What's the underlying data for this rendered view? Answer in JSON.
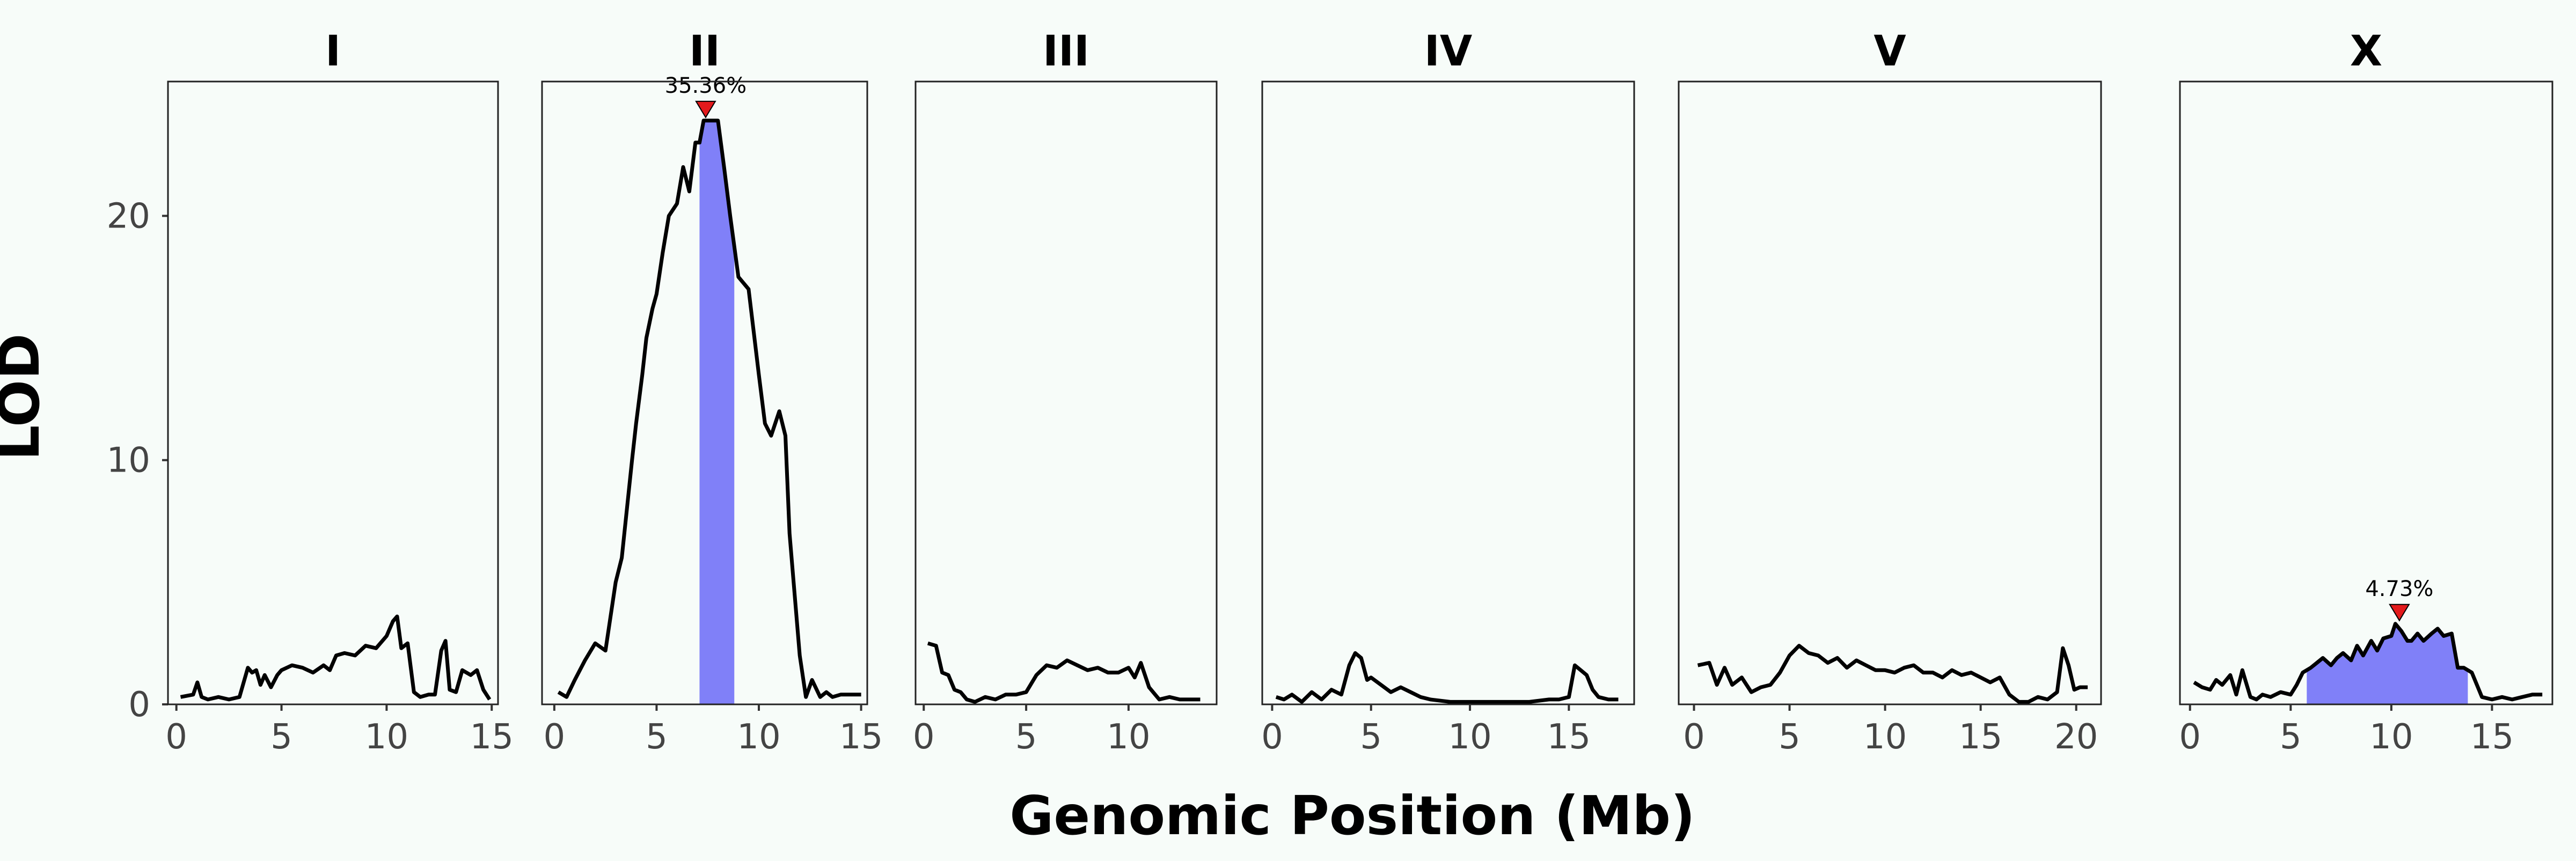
{
  "chart_data": {
    "type": "line",
    "xlabel": "Genomic Position (Mb)",
    "ylabel": "LOD",
    "ylim": [
      0,
      25.5
    ],
    "yticks": [
      0,
      10,
      20
    ],
    "grid": false,
    "colors": {
      "line": "#000000",
      "interval": "#8080f8",
      "marker": "#e31a1c",
      "panel_bg": "#f7fcf9"
    },
    "panels": [
      {
        "name": "I",
        "xlim": [
          -0.4,
          15.3
        ],
        "xticks": [
          0,
          5,
          10,
          15
        ],
        "peak": null,
        "x": [
          0.2,
          0.8,
          1.0,
          1.2,
          1.5,
          2,
          2.5,
          3,
          3.4,
          3.6,
          3.8,
          4.0,
          4.2,
          4.5,
          4.8,
          5,
          5.5,
          6,
          6.5,
          7,
          7.3,
          7.6,
          8,
          8.5,
          9,
          9.5,
          10,
          10.3,
          10.5,
          10.7,
          11,
          11.3,
          11.6,
          12,
          12.3,
          12.6,
          12.8,
          13,
          13.3,
          13.6,
          14,
          14.3,
          14.6,
          14.9
        ],
        "y": [
          0.3,
          0.4,
          0.9,
          0.3,
          0.2,
          0.3,
          0.2,
          0.3,
          1.5,
          1.3,
          1.4,
          0.8,
          1.2,
          0.7,
          1.2,
          1.4,
          1.6,
          1.5,
          1.3,
          1.6,
          1.4,
          2.0,
          2.1,
          2.0,
          2.4,
          2.3,
          2.8,
          3.4,
          3.6,
          2.3,
          2.5,
          0.5,
          0.3,
          0.4,
          0.4,
          2.2,
          2.6,
          0.6,
          0.5,
          1.4,
          1.2,
          1.4,
          0.6,
          0.2
        ]
      },
      {
        "name": "II",
        "xlim": [
          -0.6,
          15.3
        ],
        "xticks": [
          0,
          5,
          10,
          15
        ],
        "peak": {
          "x": 7.4,
          "label": "35.36%",
          "ci": [
            7.1,
            8.8
          ]
        },
        "x": [
          0.2,
          0.6,
          1,
          1.5,
          2,
          2.5,
          3,
          3.3,
          3.8,
          4,
          4.3,
          4.5,
          4.8,
          5,
          5.3,
          5.6,
          6,
          6.3,
          6.6,
          6.9,
          7.1,
          7.3,
          7.5,
          7.8,
          8.0,
          8.3,
          8.6,
          9,
          9.5,
          10,
          10.3,
          10.6,
          11,
          11.3,
          11.5,
          11.8,
          12,
          12.3,
          12.6,
          13,
          13.3,
          13.6,
          14,
          14.5,
          15
        ],
        "y": [
          0.5,
          0.3,
          1.0,
          1.8,
          2.5,
          2.2,
          5.0,
          6.0,
          10.0,
          11.5,
          13.5,
          15.0,
          16.2,
          16.8,
          18.5,
          20.0,
          20.5,
          22.0,
          21.0,
          23.0,
          23.0,
          23.9,
          23.9,
          23.9,
          23.9,
          22.0,
          20.0,
          17.5,
          17.0,
          13.5,
          11.5,
          11.0,
          12.0,
          11.0,
          7.0,
          4.0,
          2.0,
          0.3,
          1.0,
          0.3,
          0.5,
          0.3,
          0.4,
          0.4,
          0.4
        ]
      },
      {
        "name": "III",
        "xlim": [
          -0.4,
          14.3
        ],
        "xticks": [
          0,
          5,
          10
        ],
        "peak": null,
        "x": [
          0.2,
          0.6,
          0.9,
          1.2,
          1.5,
          1.8,
          2.1,
          2.5,
          3,
          3.5,
          4,
          4.5,
          5,
          5.5,
          6,
          6.5,
          7,
          7.5,
          8,
          8.5,
          9,
          9.5,
          10,
          10.3,
          10.6,
          11,
          11.5,
          12,
          12.5,
          13,
          13.5
        ],
        "y": [
          2.5,
          2.4,
          1.3,
          1.2,
          0.6,
          0.5,
          0.2,
          0.1,
          0.3,
          0.2,
          0.4,
          0.4,
          0.5,
          1.2,
          1.6,
          1.5,
          1.8,
          1.6,
          1.4,
          1.5,
          1.3,
          1.3,
          1.5,
          1.1,
          1.7,
          0.7,
          0.2,
          0.3,
          0.2,
          0.2,
          0.2
        ]
      },
      {
        "name": "IV",
        "xlim": [
          -0.5,
          18.3
        ],
        "xticks": [
          0,
          5,
          10,
          15
        ],
        "peak": null,
        "x": [
          0.2,
          0.6,
          1,
          1.5,
          2,
          2.5,
          3,
          3.5,
          3.9,
          4.2,
          4.5,
          4.8,
          5,
          5.5,
          6,
          6.5,
          7,
          7.5,
          8,
          9,
          10,
          11,
          12,
          13,
          14,
          14.5,
          15,
          15.3,
          15.6,
          15.9,
          16.2,
          16.5,
          17,
          17.5
        ],
        "y": [
          0.3,
          0.2,
          0.4,
          0.1,
          0.5,
          0.2,
          0.6,
          0.4,
          1.6,
          2.1,
          1.9,
          1.0,
          1.1,
          0.8,
          0.5,
          0.7,
          0.5,
          0.3,
          0.2,
          0.1,
          0.1,
          0.1,
          0.1,
          0.1,
          0.2,
          0.2,
          0.3,
          1.6,
          1.4,
          1.2,
          0.6,
          0.3,
          0.2,
          0.2
        ]
      },
      {
        "name": "V",
        "xlim": [
          -0.8,
          21.3
        ],
        "xticks": [
          0,
          5,
          10,
          15,
          20
        ],
        "peak": null,
        "x": [
          0.2,
          0.8,
          1.2,
          1.6,
          2,
          2.5,
          3,
          3.5,
          4,
          4.5,
          5,
          5.5,
          6,
          6.5,
          7,
          7.5,
          8,
          8.5,
          9,
          9.5,
          10,
          10.5,
          11,
          11.5,
          12,
          12.5,
          13,
          13.5,
          14,
          14.5,
          15,
          15.5,
          16,
          16.5,
          17,
          17.5,
          18,
          18.5,
          19,
          19.3,
          19.6,
          19.9,
          20.2,
          20.6
        ],
        "y": [
          1.6,
          1.7,
          0.8,
          1.5,
          0.8,
          1.1,
          0.5,
          0.7,
          0.8,
          1.3,
          2.0,
          2.4,
          2.1,
          2.0,
          1.7,
          1.9,
          1.5,
          1.8,
          1.6,
          1.4,
          1.4,
          1.3,
          1.5,
          1.6,
          1.3,
          1.3,
          1.1,
          1.4,
          1.2,
          1.3,
          1.1,
          0.9,
          1.1,
          0.4,
          0.1,
          0.1,
          0.3,
          0.2,
          0.5,
          2.3,
          1.6,
          0.6,
          0.7,
          0.7
        ]
      },
      {
        "name": "X",
        "xlim": [
          -0.5,
          18.0
        ],
        "xticks": [
          0,
          5,
          10,
          15
        ],
        "peak": {
          "x": 10.4,
          "label": "4.73%",
          "ci": [
            5.8,
            13.8
          ]
        },
        "x": [
          0.2,
          0.6,
          1,
          1.3,
          1.6,
          2,
          2.3,
          2.6,
          3,
          3.3,
          3.6,
          4,
          4.5,
          5,
          5.3,
          5.6,
          6,
          6.3,
          6.6,
          7,
          7.3,
          7.6,
          8,
          8.3,
          8.6,
          9,
          9.3,
          9.6,
          10,
          10.2,
          10.5,
          10.8,
          11,
          11.3,
          11.6,
          12,
          12.3,
          12.6,
          13,
          13.3,
          13.6,
          14,
          14.5,
          15,
          15.5,
          16,
          16.5,
          17,
          17.5
        ],
        "y": [
          0.9,
          0.7,
          0.6,
          1.0,
          0.8,
          1.2,
          0.4,
          1.4,
          0.3,
          0.2,
          0.4,
          0.3,
          0.5,
          0.4,
          0.8,
          1.3,
          1.5,
          1.7,
          1.9,
          1.6,
          1.9,
          2.1,
          1.8,
          2.4,
          2.0,
          2.6,
          2.2,
          2.7,
          2.8,
          3.3,
          3.0,
          2.6,
          2.6,
          2.9,
          2.6,
          2.9,
          3.1,
          2.8,
          2.9,
          1.5,
          1.5,
          1.3,
          0.3,
          0.2,
          0.3,
          0.2,
          0.3,
          0.4,
          0.4
        ]
      }
    ]
  }
}
